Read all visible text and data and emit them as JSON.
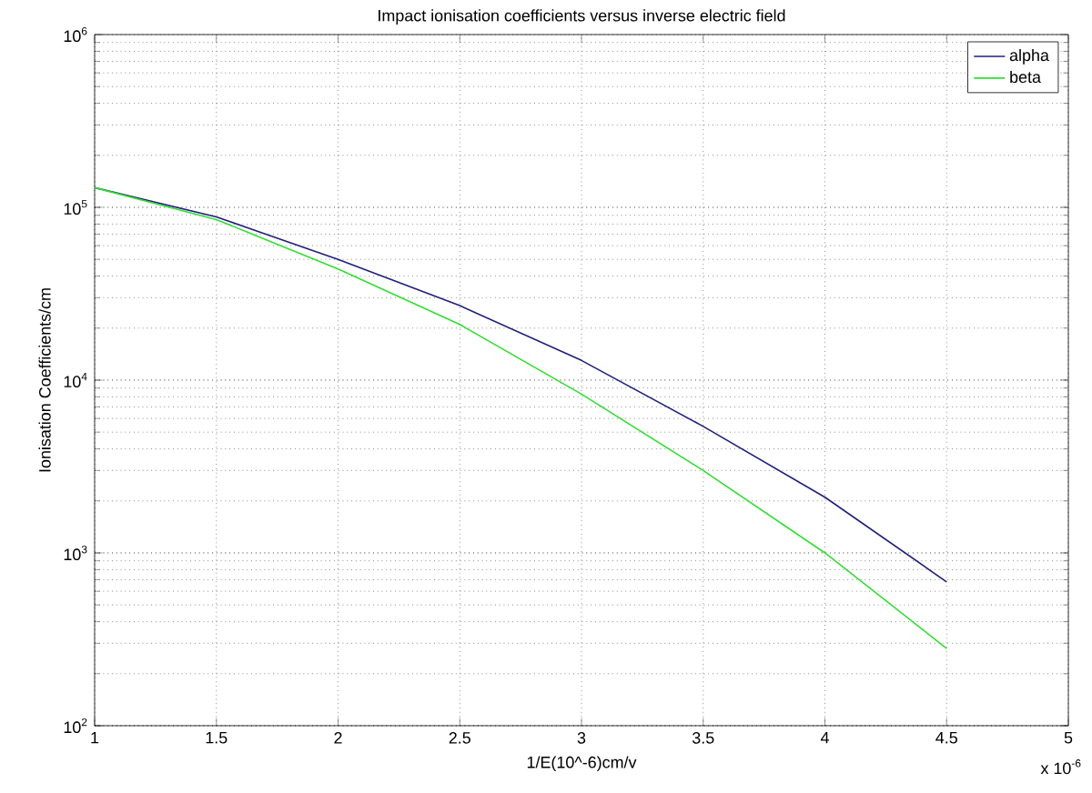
{
  "chart_data": {
    "type": "line",
    "title": "Impact ionisation coefficients versus inverse electric field",
    "xlabel": "1/E(10^-6)cm/v",
    "ylabel": "Ionisation Coefficients/cm",
    "x": [
      1,
      1.5,
      2,
      2.5,
      3,
      3.5,
      4,
      4.5
    ],
    "series": [
      {
        "name": "alpha",
        "color": "#1f1f7a",
        "values": [
          130000,
          88000,
          50000,
          27000,
          13000,
          5400,
          2100,
          680
        ]
      },
      {
        "name": "beta",
        "color": "#33dd33",
        "values": [
          130000,
          85000,
          44000,
          21000,
          8300,
          3000,
          1000,
          280
        ]
      }
    ],
    "xlim": [
      1,
      5
    ],
    "xticks": [
      1,
      1.5,
      2,
      2.5,
      3,
      3.5,
      4,
      4.5,
      5
    ],
    "ylim": [
      100,
      1000000
    ],
    "yticks": [
      {
        "value": 100,
        "label": "10$^{2}$"
      },
      {
        "value": 1000,
        "label": "10$^{3}$"
      },
      {
        "value": 10000,
        "label": "10$^{4}$"
      },
      {
        "value": 100000,
        "label": "10$^{5}$"
      },
      {
        "value": 1000000,
        "label": "10$^{6}$"
      }
    ],
    "log": "y",
    "grid": true,
    "legend": "top right",
    "line_style": "solid",
    "annotations": [
      "x 10$^{-6}$"
    ]
  }
}
